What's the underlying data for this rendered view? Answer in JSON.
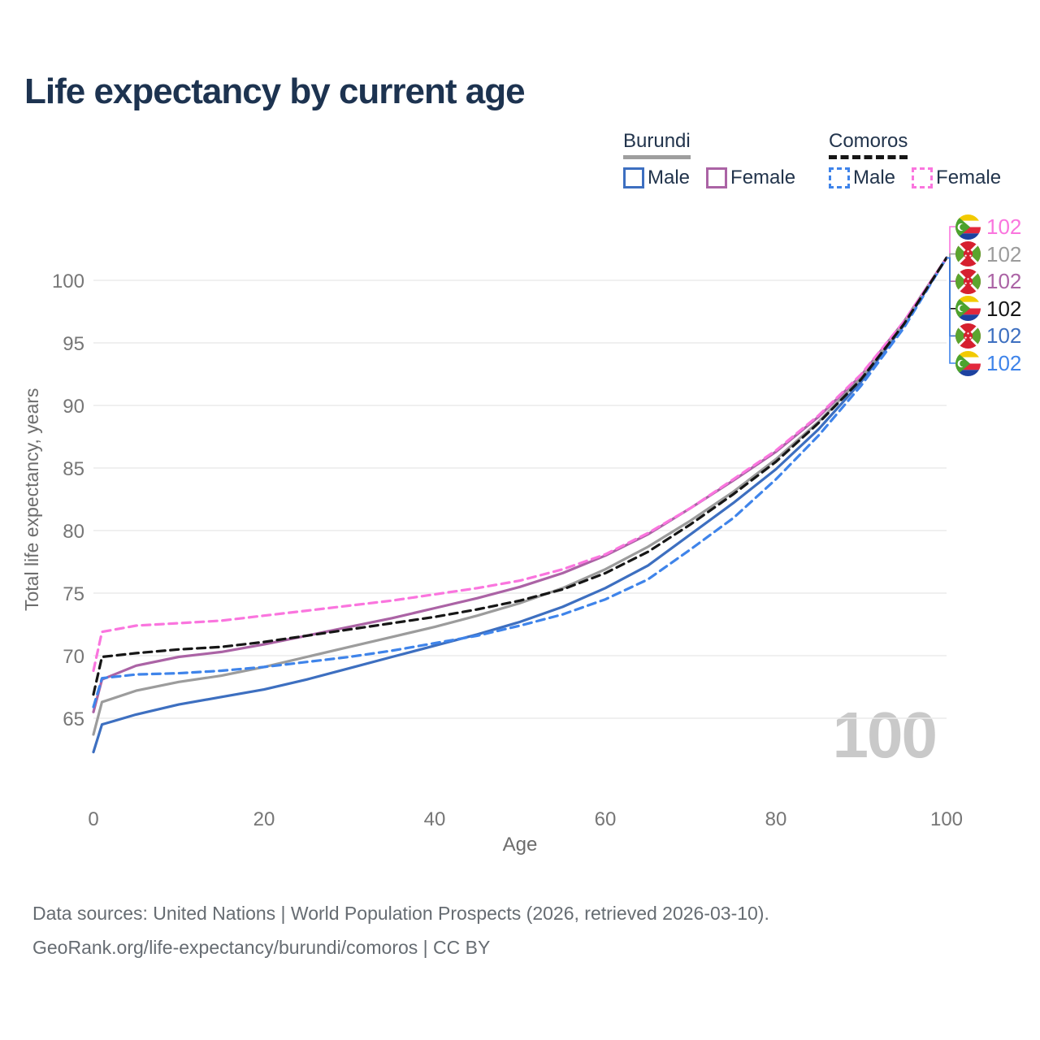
{
  "title": "Life expectancy by current age",
  "watermark": "100",
  "legend": {
    "groups": [
      {
        "id": "burundi",
        "label": "Burundi",
        "underline_style": "solid",
        "underline_color": "#9e9e9e",
        "items": [
          {
            "label": "Male",
            "color": "#3d6fc0",
            "dash": false
          },
          {
            "label": "Female",
            "color": "#ab63a5",
            "dash": false
          }
        ]
      },
      {
        "id": "comoros",
        "label": "Comoros",
        "underline_style": "dashed",
        "underline_color": "#161616",
        "items": [
          {
            "label": "Male",
            "color": "#3f84ea",
            "dash": true
          },
          {
            "label": "Female",
            "color": "#fa75de",
            "dash": true
          }
        ]
      }
    ]
  },
  "footer": {
    "line1": "Data sources: United Nations | World Population Prospects (2026, retrieved 2026-03-10).",
    "line2": "GeoRank.org/life-expectancy/burundi/comoros | CC BY"
  },
  "chart_data": {
    "type": "line",
    "title": "Life expectancy by current age",
    "xlabel": "Age",
    "ylabel": "Total life expectancy, years",
    "xlim": [
      0,
      100
    ],
    "ylim": [
      62,
      103
    ],
    "xticks": [
      0,
      20,
      40,
      60,
      80,
      100
    ],
    "yticks": [
      65,
      70,
      75,
      80,
      85,
      90,
      95,
      100
    ],
    "grid": "horizontal",
    "gridline_color": "#ececec",
    "x": [
      0,
      1,
      5,
      10,
      15,
      20,
      25,
      30,
      35,
      40,
      45,
      50,
      55,
      60,
      65,
      70,
      75,
      80,
      85,
      90,
      95,
      100
    ],
    "series": [
      {
        "id": "burundi-male",
        "name": "Burundi Male",
        "country": "Burundi",
        "sex": "Male",
        "color": "#3d6fc0",
        "dash": false,
        "values": [
          62.3,
          64.5,
          65.3,
          66.1,
          66.7,
          67.3,
          68.1,
          69.0,
          69.9,
          70.8,
          71.7,
          72.7,
          73.9,
          75.4,
          77.2,
          79.7,
          82.2,
          84.9,
          88.1,
          91.9,
          96.4,
          101.8
        ]
      },
      {
        "id": "burundi-female",
        "name": "Burundi Female",
        "country": "Burundi",
        "sex": "Female",
        "color": "#ab63a5",
        "dash": false,
        "values": [
          65.5,
          68.1,
          69.2,
          69.9,
          70.3,
          70.9,
          71.6,
          72.3,
          73.0,
          73.8,
          74.6,
          75.5,
          76.6,
          78.0,
          79.7,
          81.8,
          84.0,
          86.3,
          89.1,
          92.4,
          96.7,
          101.8
        ]
      },
      {
        "id": "burundi-both",
        "name": "Burundi Both sexes",
        "country": "Burundi",
        "sex": "Both",
        "color": "#9c9c9c",
        "dash": false,
        "values": [
          63.7,
          66.3,
          67.2,
          67.9,
          68.4,
          69.1,
          69.9,
          70.7,
          71.5,
          72.3,
          73.2,
          74.2,
          75.4,
          76.9,
          78.7,
          80.8,
          83.1,
          85.7,
          88.7,
          92.2,
          96.6,
          101.8
        ]
      },
      {
        "id": "comoros-male",
        "name": "Comoros Male",
        "country": "Comoros",
        "sex": "Male",
        "color": "#3f84ea",
        "dash": true,
        "values": [
          65.9,
          68.2,
          68.5,
          68.6,
          68.8,
          69.1,
          69.5,
          69.9,
          70.4,
          71.0,
          71.6,
          72.4,
          73.3,
          74.5,
          76.1,
          78.5,
          81.0,
          84.1,
          87.6,
          91.6,
          96.2,
          101.8
        ]
      },
      {
        "id": "comoros-female",
        "name": "Comoros Female",
        "country": "Comoros",
        "sex": "Female",
        "color": "#fa75de",
        "dash": true,
        "values": [
          68.8,
          71.9,
          72.4,
          72.6,
          72.8,
          73.2,
          73.6,
          74.0,
          74.4,
          74.9,
          75.4,
          76.0,
          76.9,
          78.1,
          79.8,
          81.8,
          84.1,
          86.4,
          89.2,
          92.5,
          96.7,
          101.8
        ]
      },
      {
        "id": "comoros-both",
        "name": "Comoros Both sexes",
        "country": "Comoros",
        "sex": "Both",
        "color": "#161616",
        "dash": true,
        "values": [
          66.9,
          69.9,
          70.2,
          70.5,
          70.7,
          71.1,
          71.6,
          72.1,
          72.6,
          73.1,
          73.7,
          74.4,
          75.3,
          76.6,
          78.3,
          80.5,
          82.9,
          85.5,
          88.6,
          92.1,
          96.5,
          101.8
        ]
      }
    ],
    "end_labels": [
      {
        "flag": "comoros",
        "series": "Comoros Female",
        "value": "102",
        "color": "#fa75de"
      },
      {
        "flag": "burundi",
        "series": "Burundi Both sexes",
        "value": "102",
        "color": "#9c9c9c"
      },
      {
        "flag": "burundi",
        "series": "Burundi Female",
        "value": "102",
        "color": "#ab63a5"
      },
      {
        "flag": "comoros",
        "series": "Comoros Both sexes",
        "value": "102",
        "color": "#161616"
      },
      {
        "flag": "burundi",
        "series": "Burundi Male",
        "value": "102",
        "color": "#3d6fc0"
      },
      {
        "flag": "comoros",
        "series": "Comoros Male",
        "value": "102",
        "color": "#3f84ea"
      }
    ]
  }
}
